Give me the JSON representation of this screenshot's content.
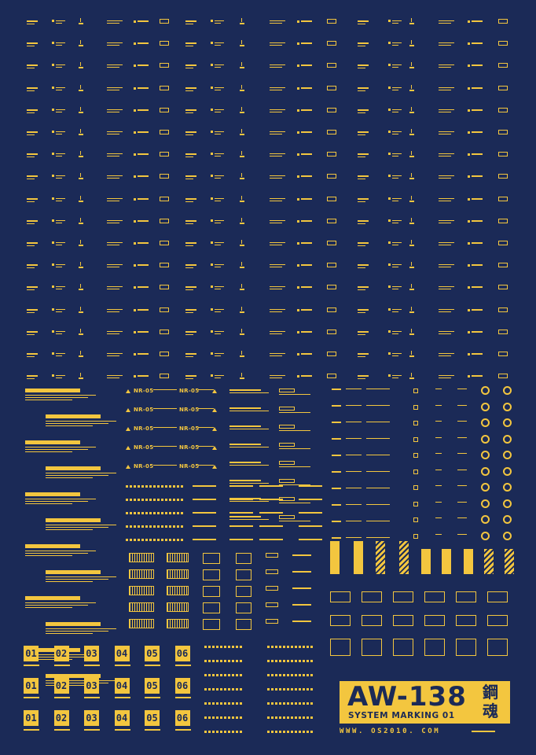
{
  "title": {
    "model": "AW-138",
    "subtitle": "SYSTEM MARKING 01",
    "kanji_top": "鋼",
    "kanji_bottom": "魂",
    "website": "WWW. OS2010. COM"
  },
  "nr_label": "NR-05",
  "number_tiles": [
    "01",
    "02",
    "03",
    "04",
    "05",
    "06"
  ],
  "colors": {
    "background": "#1b2a57",
    "accent": "#f3c63f"
  }
}
